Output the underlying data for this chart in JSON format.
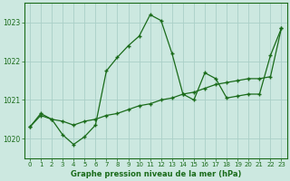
{
  "title": "Graphe pression niveau de la mer (hPa)",
  "bg_color": "#cce8e0",
  "grid_color": "#aad0c8",
  "line_color": "#1a6b1a",
  "xlim": [
    -0.5,
    23.5
  ],
  "ylim": [
    1019.5,
    1023.5
  ],
  "yticks": [
    1020,
    1021,
    1022,
    1023
  ],
  "xticks": [
    0,
    1,
    2,
    3,
    4,
    5,
    6,
    7,
    8,
    9,
    10,
    11,
    12,
    13,
    14,
    15,
    16,
    17,
    18,
    19,
    20,
    21,
    22,
    23
  ],
  "series1_x": [
    0,
    1,
    2,
    3,
    4,
    5,
    6,
    7,
    8,
    9,
    10,
    11,
    12,
    13,
    14,
    15,
    16,
    17,
    18,
    19,
    20,
    21,
    22,
    23
  ],
  "series1_y": [
    1020.3,
    1020.65,
    1020.5,
    1020.1,
    1019.85,
    1020.05,
    1020.35,
    1021.75,
    1022.1,
    1022.4,
    1022.65,
    1023.2,
    1023.05,
    1022.2,
    1021.15,
    1021.0,
    1021.7,
    1021.55,
    1021.05,
    1021.1,
    1021.15,
    1021.15,
    1022.15,
    1022.85
  ],
  "series2_x": [
    0,
    1,
    2,
    3,
    4,
    5,
    6,
    7,
    8,
    9,
    10,
    11,
    12,
    13,
    14,
    15,
    16,
    17,
    18,
    19,
    20,
    21,
    22,
    23
  ],
  "series2_y": [
    1020.3,
    1020.6,
    1020.5,
    1020.45,
    1020.35,
    1020.45,
    1020.5,
    1020.6,
    1020.65,
    1020.75,
    1020.85,
    1020.9,
    1021.0,
    1021.05,
    1021.15,
    1021.2,
    1021.3,
    1021.4,
    1021.45,
    1021.5,
    1021.55,
    1021.55,
    1021.6,
    1022.85
  ]
}
